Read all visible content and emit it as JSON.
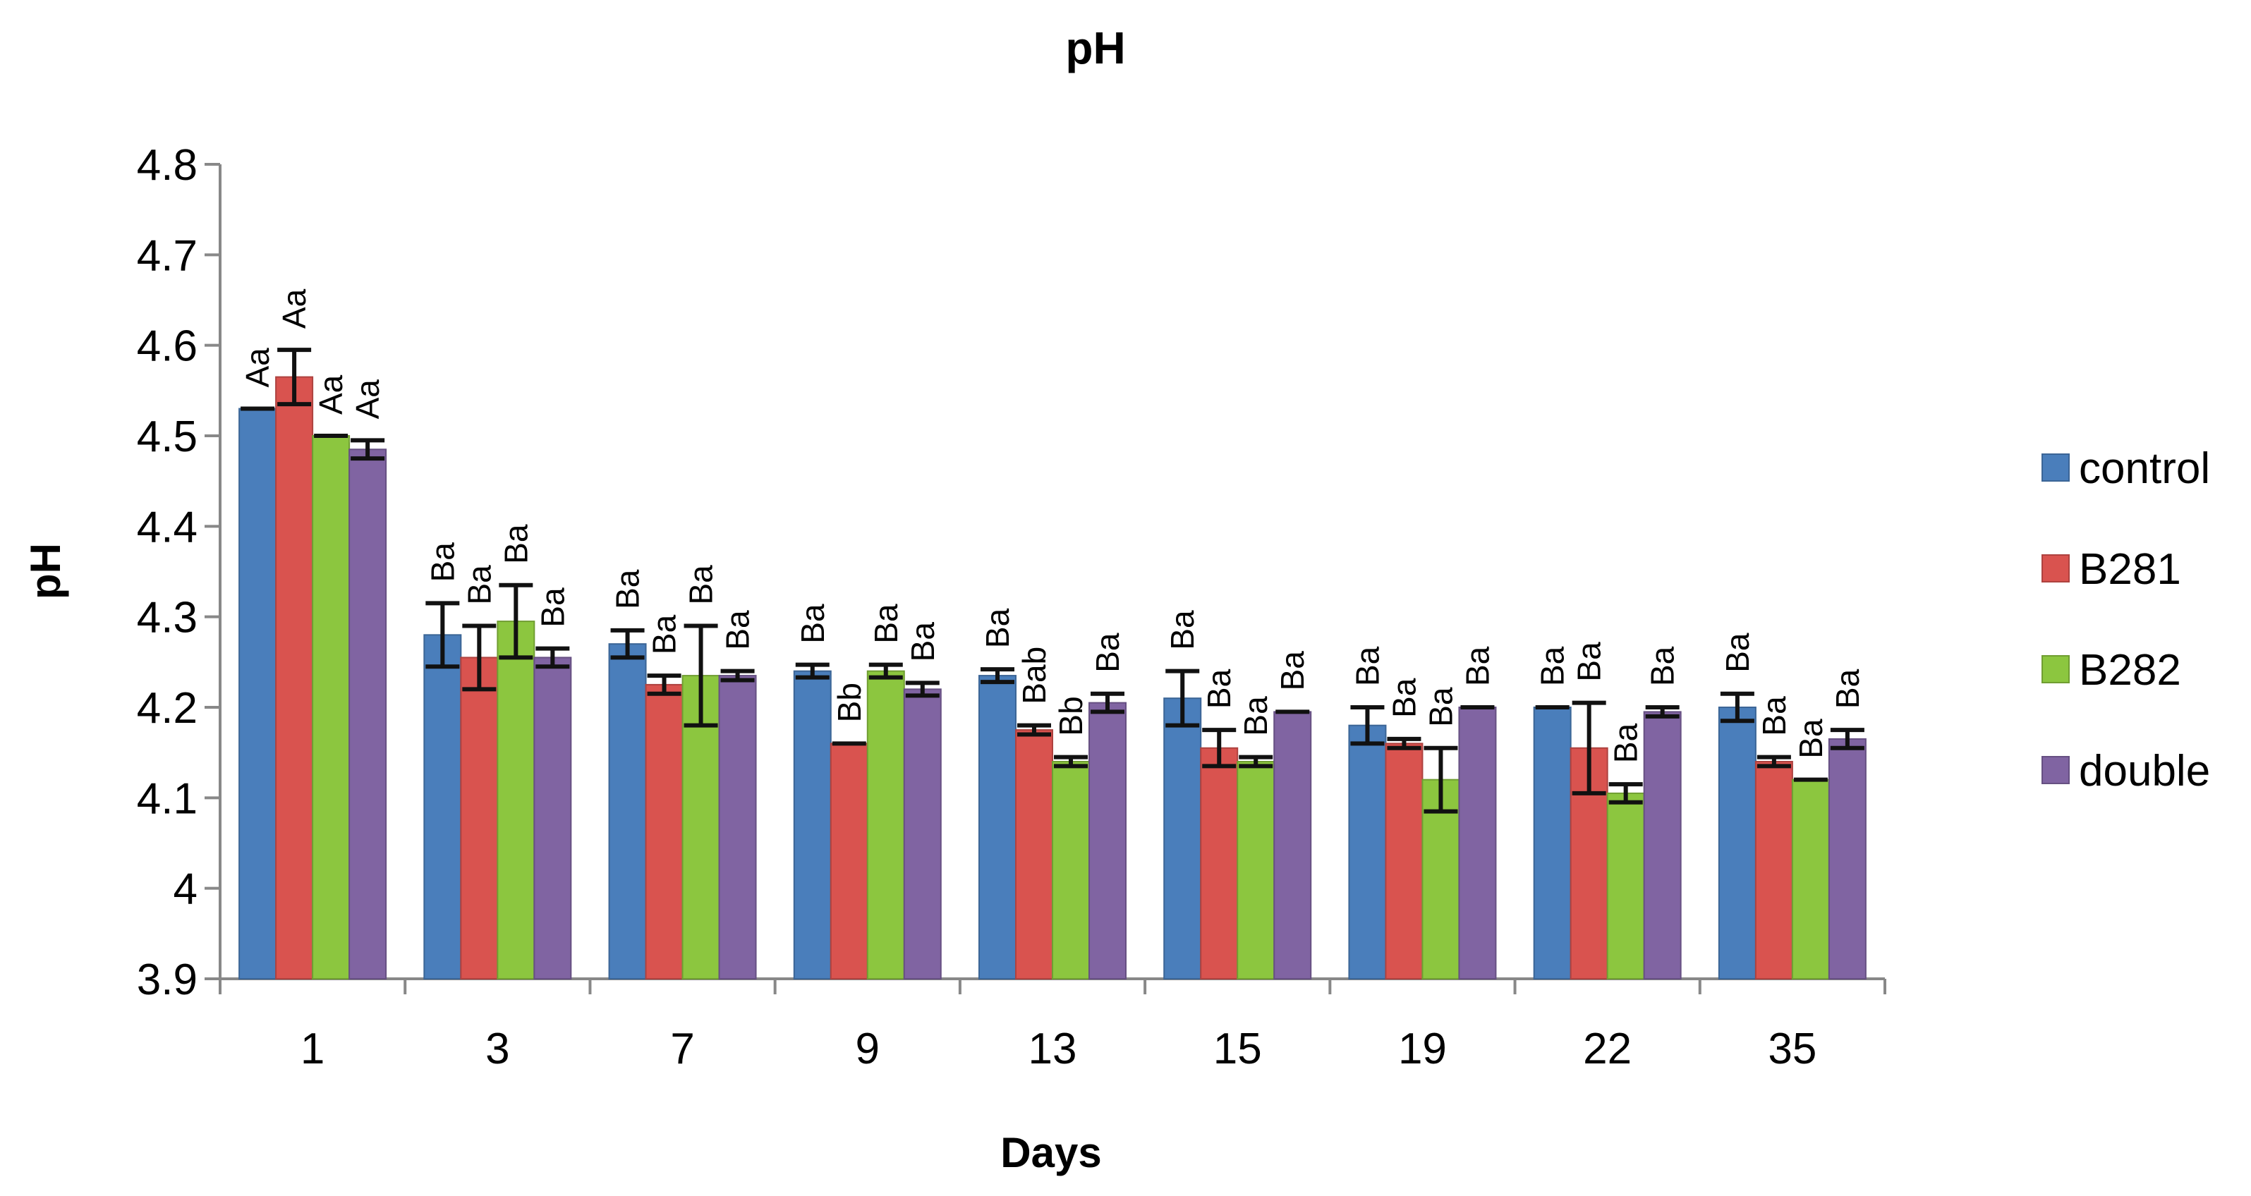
{
  "chart_data": {
    "type": "bar",
    "title": "pH",
    "xlabel": "Days",
    "ylabel": "pH",
    "ylim": [
      3.9,
      4.8
    ],
    "yticks": [
      "3.9",
      "4",
      "4.1",
      "4.2",
      "4.3",
      "4.4",
      "4.5",
      "4.6",
      "4.7",
      "4.8"
    ],
    "categories": [
      "1",
      "3",
      "7",
      "9",
      "13",
      "15",
      "19",
      "22",
      "35"
    ],
    "legend_position": "right",
    "series": [
      {
        "name": "control",
        "color": "#4A7EBB",
        "values": [
          4.53,
          4.28,
          4.27,
          4.24,
          4.235,
          4.21,
          4.18,
          4.2,
          4.2
        ],
        "errors": [
          0.0,
          0.035,
          0.015,
          0.007,
          0.007,
          0.03,
          0.02,
          0.0,
          0.015
        ],
        "labels": [
          "Aa",
          "Ba",
          "Ba",
          "Ba",
          "Ba",
          "Ba",
          "Ba",
          "Ba",
          "Ba"
        ]
      },
      {
        "name": "B281",
        "color": "#D9534F",
        "values": [
          4.565,
          4.255,
          4.225,
          4.16,
          4.175,
          4.155,
          4.16,
          4.155,
          4.14
        ],
        "errors": [
          0.03,
          0.035,
          0.01,
          0.0,
          0.005,
          0.02,
          0.005,
          0.05,
          0.005
        ],
        "labels": [
          "Aa",
          "Ba",
          "Ba",
          "Bb",
          "Bab",
          "Ba",
          "Ba",
          "Ba",
          "Ba"
        ]
      },
      {
        "name": "B282",
        "color": "#8CC63F",
        "values": [
          4.5,
          4.295,
          4.235,
          4.24,
          4.14,
          4.14,
          4.12,
          4.105,
          4.12
        ],
        "errors": [
          0.0,
          0.04,
          0.055,
          0.007,
          0.005,
          0.005,
          0.035,
          0.01,
          0.0
        ],
        "labels": [
          "Aa",
          "Ba",
          "Ba",
          "Ba",
          "Bb",
          "Ba",
          "Ba",
          "Ba",
          "Ba"
        ]
      },
      {
        "name": "double",
        "color": "#8064A2",
        "values": [
          4.485,
          4.255,
          4.235,
          4.22,
          4.205,
          4.195,
          4.2,
          4.195,
          4.165
        ],
        "errors": [
          0.01,
          0.01,
          0.005,
          0.007,
          0.01,
          0.0,
          0.0,
          0.005,
          0.01
        ],
        "labels": [
          "Aa",
          "Ba",
          "Ba",
          "Ba",
          "Ba",
          "Ba",
          "Ba",
          "Ba",
          "Ba"
        ]
      }
    ]
  }
}
